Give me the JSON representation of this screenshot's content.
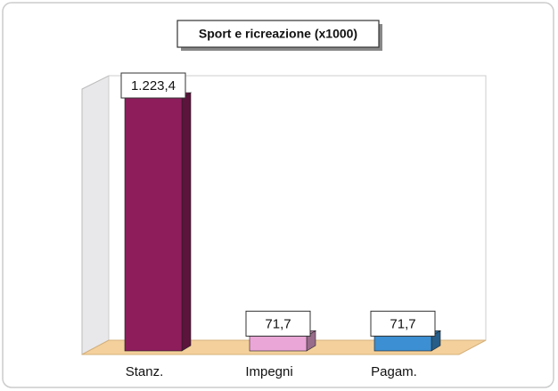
{
  "chart_data": {
    "type": "bar3d",
    "title": "Sport e ricreazione (x1000)",
    "categories": [
      "Stanz.",
      "Impegni",
      "Pagam."
    ],
    "values": [
      1223.4,
      71.7,
      71.7
    ],
    "value_labels": [
      "1.223,4",
      "71,7",
      "71,7"
    ],
    "colors": [
      "#8e1d5c",
      "#eaa6d6",
      "#3b8fd2"
    ]
  }
}
